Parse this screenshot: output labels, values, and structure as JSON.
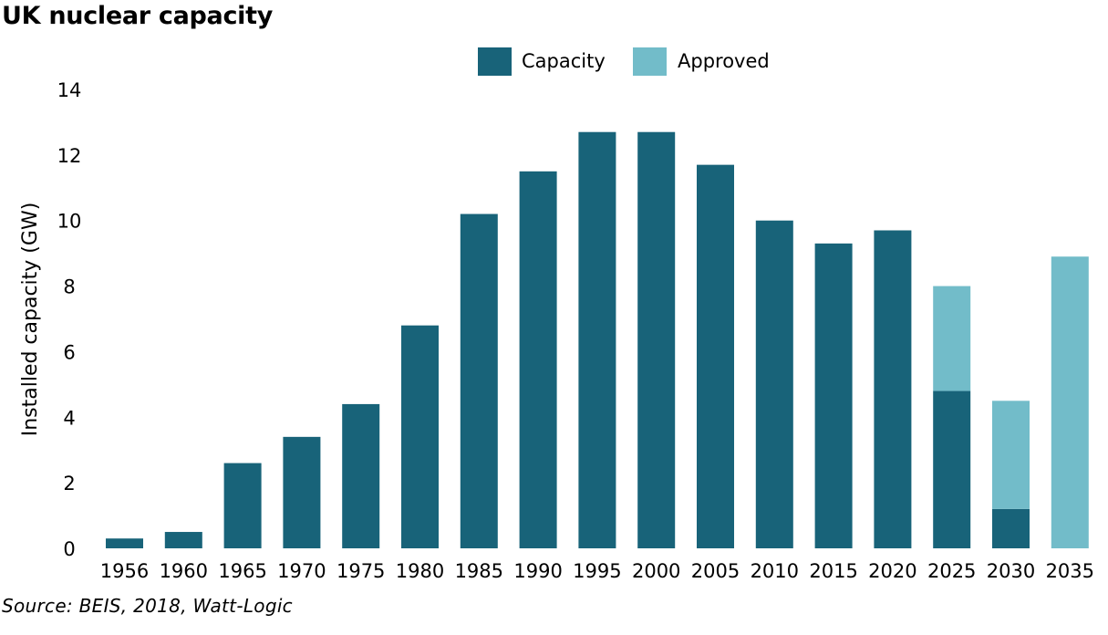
{
  "chart_data": {
    "type": "bar",
    "stacked": true,
    "title": "UK nuclear capacity",
    "source": "Source: BEIS, 2018, Watt-Logic",
    "xlabel": "",
    "ylabel": "Installed capacity (GW)",
    "ylim": [
      0,
      14
    ],
    "yticks": [
      "0",
      "2",
      "4",
      "6",
      "8",
      "10",
      "12",
      "14"
    ],
    "grid": false,
    "legend_position": "top-center",
    "categories": [
      "1956",
      "1960",
      "1965",
      "1970",
      "1975",
      "1980",
      "1985",
      "1990",
      "1995",
      "2000",
      "2005",
      "2010",
      "2015",
      "2020",
      "2025",
      "2030",
      "2035"
    ],
    "series": [
      {
        "name": "Capacity",
        "color": "#186379",
        "values": [
          0.3,
          0.5,
          2.6,
          3.4,
          4.4,
          6.8,
          10.2,
          11.5,
          12.7,
          12.7,
          11.7,
          10.0,
          9.3,
          9.7,
          4.8,
          1.2,
          0
        ]
      },
      {
        "name": "Approved",
        "color": "#72bcc9",
        "values": [
          0,
          0,
          0,
          0,
          0,
          0,
          0,
          0,
          0,
          0,
          0,
          0,
          0,
          0,
          3.2,
          3.3,
          8.9
        ]
      }
    ]
  }
}
